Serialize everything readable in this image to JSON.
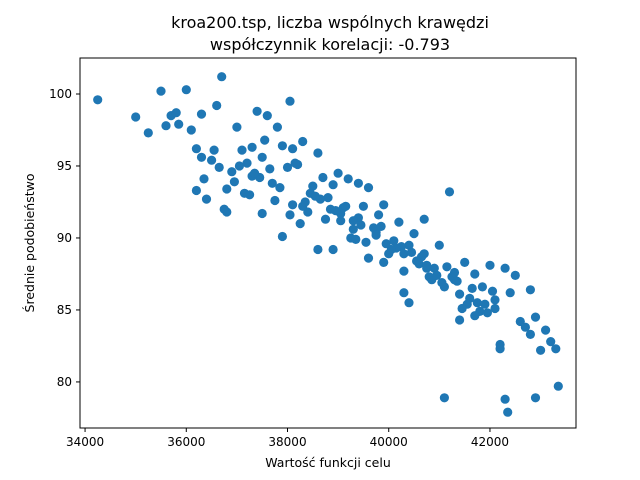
{
  "chart_data": {
    "type": "scatter",
    "title_line1": "kroa200.tsp, liczba wspólnych krawędzi",
    "title_line2": "współczynnik korelacji: -0.793",
    "xlabel": "Wartość funkcji celu",
    "ylabel": "Średnie podobieństwo",
    "xlim": [
      33900,
      43700
    ],
    "ylim": [
      76.8,
      102.5
    ],
    "x_ticks": [
      34000,
      36000,
      38000,
      40000,
      42000
    ],
    "y_ticks": [
      80,
      85,
      90,
      95,
      100
    ],
    "grid": false,
    "marker_color": "#1f77b4",
    "x": [
      34250,
      35000,
      35250,
      35500,
      35600,
      35700,
      35800,
      35850,
      36000,
      36100,
      36200,
      36300,
      36350,
      36500,
      36600,
      36700,
      36800,
      36900,
      37000,
      37100,
      37200,
      37300,
      37400,
      37500,
      37600,
      37700,
      37800,
      37900,
      38000,
      38050,
      38100,
      38200,
      38300,
      38400,
      38500,
      38600,
      38700,
      38800,
      38900,
      39000,
      39050,
      39100,
      39200,
      39300,
      39400,
      39500,
      39600,
      39700,
      39800,
      39900,
      40000,
      40100,
      40200,
      40300,
      40400,
      40500,
      40600,
      40700,
      40800,
      40900,
      41000,
      41100,
      41200,
      41300,
      41400,
      41500,
      41600,
      41700,
      41800,
      41900,
      42000,
      42100,
      42200,
      42300,
      42400,
      42500,
      42600,
      42700,
      42800,
      42900,
      43000,
      43100,
      43200,
      43300,
      36650,
      38100,
      39400,
      40700,
      41100,
      42300,
      42350,
      42900,
      43350,
      36200,
      36400,
      37500,
      38600,
      39900,
      40300,
      41700,
      42800,
      37250,
      38250,
      39250,
      40250,
      41250,
      37750,
      38750,
      39750,
      40750,
      41750,
      36800,
      37900,
      38900,
      39600,
      40400,
      41400,
      42200,
      36300,
      37300,
      38300,
      39300,
      40300,
      41300,
      42100,
      37050,
      38450,
      39850,
      40650,
      41850,
      36550,
      37650,
      38650,
      39150,
      40150,
      41150,
      42050,
      36950,
      38050,
      39550,
      40850,
      41550,
      37450,
      38850,
      39450,
      40050,
      41050,
      41950,
      37150,
      38350,
      39350,
      40450,
      41350,
      37850,
      38550,
      39050,
      40550,
      41650,
      37350,
      38150,
      39750,
      40950,
      41450,
      36750,
      37550,
      38950,
      39950,
      40750
    ],
    "y": [
      99.6,
      98.4,
      97.3,
      100.2,
      97.8,
      98.5,
      98.7,
      97.9,
      100.3,
      97.5,
      96.2,
      98.6,
      94.1,
      95.4,
      99.2,
      101.2,
      93.4,
      94.6,
      97.7,
      96.1,
      95.2,
      96.3,
      98.8,
      95.6,
      98.5,
      93.8,
      97.7,
      96.4,
      94.9,
      99.5,
      92.3,
      95.1,
      96.7,
      91.8,
      93.6,
      95.9,
      94.2,
      92.8,
      93.7,
      94.5,
      91.2,
      92.1,
      94.1,
      90.6,
      91.4,
      92.2,
      93.5,
      90.7,
      91.6,
      92.3,
      88.9,
      89.8,
      91.1,
      87.7,
      89.5,
      90.3,
      88.2,
      88.9,
      87.3,
      87.9,
      89.5,
      86.6,
      93.2,
      87.1,
      86.1,
      88.3,
      85.8,
      87.5,
      84.9,
      85.4,
      88.1,
      85.1,
      82.3,
      87.9,
      86.2,
      87.4,
      84.2,
      83.8,
      86.4,
      84.5,
      82.2,
      83.6,
      82.8,
      82.3,
      94.9,
      96.2,
      93.8,
      91.3,
      78.9,
      78.8,
      77.9,
      78.9,
      79.7,
      93.3,
      92.7,
      91.7,
      89.2,
      88.3,
      86.2,
      84.6,
      83.3,
      93.0,
      91.0,
      90.0,
      89.4,
      87.3,
      92.6,
      91.3,
      90.4,
      87.9,
      85.5,
      91.8,
      90.1,
      89.2,
      88.6,
      85.5,
      84.3,
      82.6,
      95.6,
      94.3,
      92.2,
      91.2,
      88.9,
      87.6,
      85.7,
      95.0,
      93.1,
      90.8,
      88.7,
      86.6,
      96.1,
      94.8,
      92.7,
      92.2,
      89.3,
      88.0,
      86.3,
      93.9,
      91.6,
      89.7,
      87.1,
      85.4,
      94.2,
      92.0,
      90.9,
      89.2,
      86.9,
      84.8,
      93.1,
      92.5,
      89.9,
      89.0,
      87.0,
      93.5,
      92.9,
      91.7,
      88.4,
      86.5,
      94.5,
      95.2,
      90.2,
      87.4,
      85.1,
      92.0,
      96.8,
      91.9,
      89.6,
      88.1
    ]
  }
}
